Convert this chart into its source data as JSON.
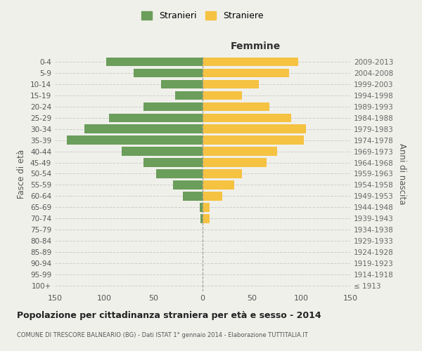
{
  "age_groups": [
    "0-4",
    "5-9",
    "10-14",
    "15-19",
    "20-24",
    "25-29",
    "30-34",
    "35-39",
    "40-44",
    "45-49",
    "50-54",
    "55-59",
    "60-64",
    "65-69",
    "70-74",
    "75-79",
    "80-84",
    "85-89",
    "90-94",
    "95-99",
    "100+"
  ],
  "birth_years": [
    "2009-2013",
    "2004-2008",
    "1999-2003",
    "1994-1998",
    "1989-1993",
    "1984-1988",
    "1979-1983",
    "1974-1978",
    "1969-1973",
    "1964-1968",
    "1959-1963",
    "1954-1958",
    "1949-1953",
    "1944-1948",
    "1939-1943",
    "1934-1938",
    "1929-1933",
    "1924-1928",
    "1919-1923",
    "1914-1918",
    "≤ 1913"
  ],
  "males": [
    98,
    70,
    42,
    28,
    60,
    95,
    120,
    138,
    82,
    60,
    47,
    30,
    20,
    3,
    2,
    0,
    0,
    0,
    0,
    0,
    0
  ],
  "females": [
    97,
    88,
    57,
    40,
    68,
    90,
    105,
    103,
    76,
    65,
    40,
    32,
    20,
    7,
    7,
    0,
    0,
    0,
    0,
    0,
    0
  ],
  "male_color": "#6a9e5a",
  "female_color": "#f5c242",
  "background_color": "#f0f0eb",
  "grid_color": "#cccccc",
  "title": "Popolazione per cittadinanza straniera per età e sesso - 2014",
  "subtitle": "COMUNE DI TRESCORE BALNEARIO (BG) - Dati ISTAT 1° gennaio 2014 - Elaborazione TUTTITALIA.IT",
  "xlabel_right": "Femmine",
  "ylabel_left": "Fasce di età",
  "ylabel_right": "Anni di nascita",
  "legend_male": "Stranieri",
  "legend_female": "Straniere",
  "xlim": 150
}
